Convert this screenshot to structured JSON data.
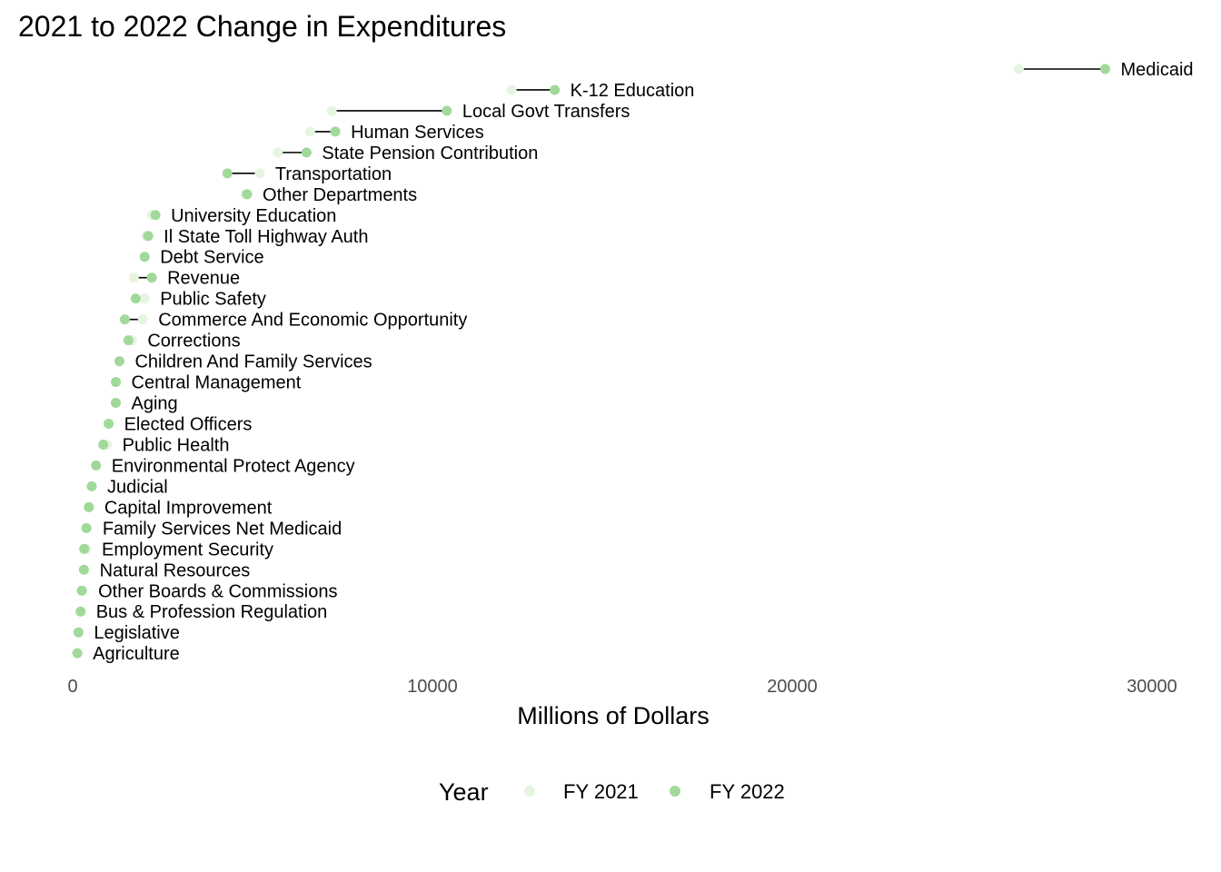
{
  "chart_data": {
    "type": "dumbbell",
    "title": "2021 to 2022 Change in Expenditures",
    "xlabel": "Millions of Dollars",
    "ylabel": "",
    "xlim": [
      0,
      30000
    ],
    "xticks": [
      "0",
      "10000",
      "20000",
      "30000"
    ],
    "grid": false,
    "legend": {
      "title": "Year",
      "position": "bottom",
      "entries": [
        {
          "name": "FY 2021",
          "color": "#e5f5e0"
        },
        {
          "name": "FY 2022",
          "color": "#a1d99b"
        }
      ]
    },
    "series": [
      {
        "name": "FY 2021",
        "color": "#e5f5e0"
      },
      {
        "name": "FY 2022",
        "color": "#a1d99b"
      }
    ],
    "rows": [
      {
        "label": "Medicaid",
        "fy2021": 26300,
        "fy2022": 28700
      },
      {
        "label": "K-12 Education",
        "fy2021": 12200,
        "fy2022": 13400
      },
      {
        "label": "Local Govt Transfers",
        "fy2021": 7200,
        "fy2022": 10400
      },
      {
        "label": "Human Services",
        "fy2021": 6600,
        "fy2022": 7300
      },
      {
        "label": "State Pension Contribution",
        "fy2021": 5700,
        "fy2022": 6500
      },
      {
        "label": "Transportation",
        "fy2021": 5200,
        "fy2022": 4300
      },
      {
        "label": "Other Departments",
        "fy2021": 4800,
        "fy2022": 4850
      },
      {
        "label": "University Education",
        "fy2021": 2200,
        "fy2022": 2300
      },
      {
        "label": "Il State Toll Highway Auth",
        "fy2021": 2050,
        "fy2022": 2100
      },
      {
        "label": "Debt Service",
        "fy2021": 2000,
        "fy2022": 2000
      },
      {
        "label": "Revenue",
        "fy2021": 1700,
        "fy2022": 2200
      },
      {
        "label": "Public Safety",
        "fy2021": 2000,
        "fy2022": 1750
      },
      {
        "label": "Commerce And Economic Opportunity",
        "fy2021": 1950,
        "fy2022": 1450
      },
      {
        "label": "Corrections",
        "fy2021": 1650,
        "fy2022": 1550
      },
      {
        "label": "Children And Family Services",
        "fy2021": 1300,
        "fy2022": 1300
      },
      {
        "label": "Central Management",
        "fy2021": 1200,
        "fy2022": 1200
      },
      {
        "label": "Aging",
        "fy2021": 1200,
        "fy2022": 1200
      },
      {
        "label": "Elected Officers",
        "fy2021": 1000,
        "fy2022": 1000
      },
      {
        "label": "Public Health",
        "fy2021": 950,
        "fy2022": 850
      },
      {
        "label": "Environmental Protect Agency",
        "fy2021": 650,
        "fy2022": 650
      },
      {
        "label": "Judicial",
        "fy2021": 530,
        "fy2022": 530
      },
      {
        "label": "Capital Improvement",
        "fy2021": 450,
        "fy2022": 450
      },
      {
        "label": "Family Services Net Medicaid",
        "fy2021": 400,
        "fy2022": 380
      },
      {
        "label": "Employment Security",
        "fy2021": 380,
        "fy2022": 320
      },
      {
        "label": "Natural Resources",
        "fy2021": 320,
        "fy2022": 310
      },
      {
        "label": "Other Boards & Commissions",
        "fy2021": 280,
        "fy2022": 250
      },
      {
        "label": "Bus & Profession Regulation",
        "fy2021": 220,
        "fy2022": 220
      },
      {
        "label": "Legislative",
        "fy2021": 160,
        "fy2022": 160
      },
      {
        "label": "Agriculture",
        "fy2021": 130,
        "fy2022": 130
      }
    ]
  }
}
